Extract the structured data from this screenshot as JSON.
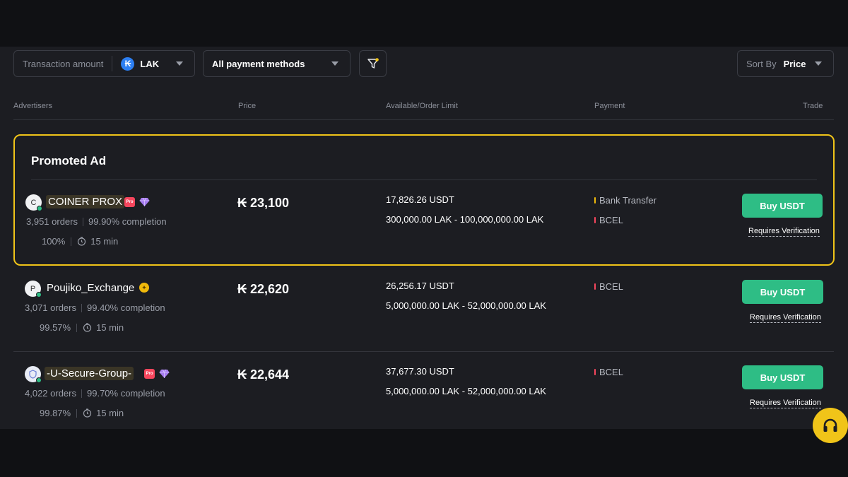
{
  "filters": {
    "amount_placeholder": "Transaction amount",
    "currency": "LAK",
    "currency_symbol": "₭",
    "payment_method": "All payment methods",
    "sort_label": "Sort By",
    "sort_value": "Price"
  },
  "columns": {
    "advertisers": "Advertisers",
    "price": "Price",
    "available": "Available/Order Limit",
    "payment": "Payment",
    "trade": "Trade"
  },
  "promoted_title": "Promoted Ad",
  "ads": [
    {
      "avatar": "C",
      "name": "COINER PROX",
      "badges": [
        "pro",
        "diamond"
      ],
      "orders": "3,951 orders",
      "completion": "99.90% completion",
      "rate": "100%",
      "time": "15 min",
      "price": "₭ 23,100",
      "available": "17,826.26 USDT",
      "limit": "300,000.00 LAK - 100,000,000.00 LAK",
      "payments": [
        "Bank Transfer",
        "BCEL"
      ],
      "buy_label": "Buy USDT",
      "verify_label": "Requires Verification"
    },
    {
      "avatar": "P",
      "name": "Poujiko_Exchange",
      "badges": [
        "gold"
      ],
      "orders": "3,071 orders",
      "completion": "99.40% completion",
      "rate": "99.57%",
      "time": "15 min",
      "price": "₭ 22,620",
      "available": "26,256.17 USDT",
      "limit": "5,000,000.00 LAK - 52,000,000.00 LAK",
      "payments": [
        "BCEL"
      ],
      "buy_label": "Buy USDT",
      "verify_label": "Requires Verification"
    },
    {
      "avatar": "",
      "name": "-U-Secure-Group-",
      "badges": [
        "pro",
        "diamond"
      ],
      "orders": "4,022 orders",
      "completion": "99.70% completion",
      "rate": "99.87%",
      "time": "15 min",
      "price": "₭ 22,644",
      "available": "37,677.30 USDT",
      "limit": "5,000,000.00 LAK - 52,000,000.00 LAK",
      "payments": [
        "BCEL"
      ],
      "buy_label": "Buy USDT",
      "verify_label": "Requires Verification"
    }
  ],
  "colors": {
    "accent": "#f0c419",
    "buy": "#2ebd85",
    "bank_transfer_bar": "#f0b90b",
    "bcel_bar": "#f6465d"
  }
}
